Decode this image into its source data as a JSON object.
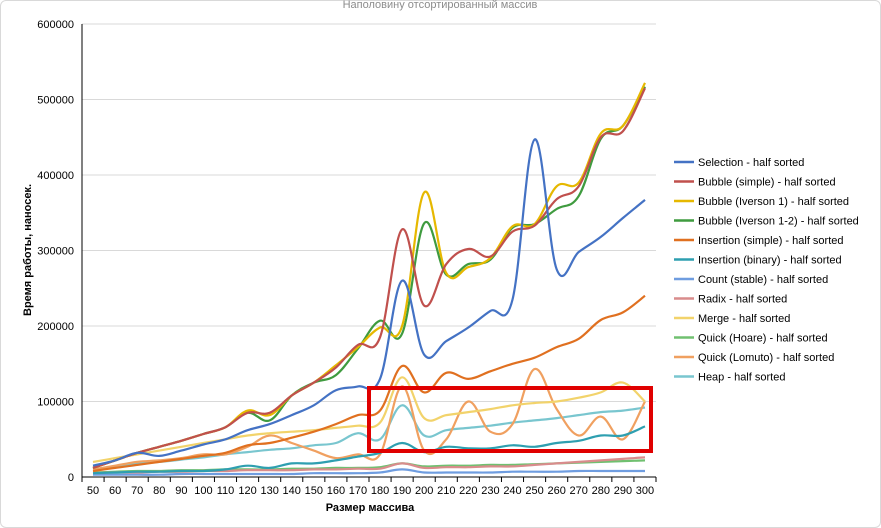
{
  "chart_data": {
    "type": "line",
    "title": "Наполовину отсортированный массив",
    "xlabel": "Размер массива",
    "ylabel": "Время работы, наносек.",
    "ylim": [
      0,
      600000
    ],
    "yticks": [
      0,
      100000,
      200000,
      300000,
      400000,
      500000,
      600000
    ],
    "grid": true,
    "legend": "right",
    "x": [
      50,
      60,
      70,
      80,
      90,
      100,
      110,
      120,
      130,
      140,
      150,
      160,
      170,
      180,
      190,
      200,
      210,
      220,
      230,
      240,
      250,
      260,
      270,
      280,
      290,
      300
    ],
    "series": [
      {
        "name": "Selection - half sorted",
        "color": "#4472c4",
        "values": [
          15000,
          22000,
          32000,
          28000,
          35000,
          43000,
          50000,
          62000,
          70000,
          82000,
          95000,
          115000,
          120000,
          130000,
          260000,
          162000,
          180000,
          198000,
          220000,
          235000,
          447000,
          275000,
          298000,
          318000,
          343000,
          367000
        ]
      },
      {
        "name": "Bubble (simple) - half sorted",
        "color": "#c0504d",
        "values": [
          12000,
          22000,
          32000,
          40000,
          48000,
          57000,
          66000,
          85000,
          85000,
          108000,
          125000,
          145000,
          175000,
          185000,
          328000,
          227000,
          282000,
          302000,
          292000,
          325000,
          333000,
          368000,
          385000,
          450000,
          458000,
          515000
        ]
      },
      {
        "name": "Bubble (Iverson 1) - half sorted",
        "color": "#e6b800",
        "values": [
          12000,
          22000,
          32000,
          40000,
          48000,
          57000,
          66000,
          88000,
          82000,
          108000,
          125000,
          148000,
          172000,
          198000,
          200000,
          377000,
          270000,
          278000,
          290000,
          332000,
          335000,
          385000,
          390000,
          455000,
          465000,
          522000
        ]
      },
      {
        "name": "Bubble (Iverson 1-2) - half sorted",
        "color": "#3f9b3f",
        "values": [
          12000,
          22000,
          32000,
          40000,
          48000,
          57000,
          66000,
          85000,
          75000,
          108000,
          125000,
          135000,
          170000,
          207000,
          190000,
          336000,
          268000,
          282000,
          288000,
          330000,
          335000,
          355000,
          372000,
          448000,
          465000,
          517000
        ]
      },
      {
        "name": "Insertion (simple) - half sorted",
        "color": "#e07020",
        "values": [
          8000,
          12000,
          16000,
          20000,
          24000,
          28000,
          32000,
          42000,
          45000,
          52000,
          60000,
          70000,
          82000,
          88000,
          147000,
          112000,
          138000,
          130000,
          140000,
          150000,
          158000,
          172000,
          183000,
          208000,
          218000,
          240000
        ]
      },
      {
        "name": "Insertion (binary) - half sorted",
        "color": "#2e9fb0",
        "values": [
          5000,
          6000,
          7000,
          7000,
          8000,
          8000,
          10000,
          15000,
          12000,
          18000,
          18000,
          22000,
          27000,
          32000,
          45000,
          33000,
          40000,
          38000,
          38000,
          42000,
          40000,
          45000,
          48000,
          55000,
          55000,
          67000
        ]
      },
      {
        "name": "Count (stable) - half sorted",
        "color": "#6f9de0",
        "values": [
          3000,
          3000,
          3000,
          3000,
          4000,
          4000,
          4000,
          4000,
          4000,
          4000,
          5000,
          5000,
          5000,
          6000,
          10000,
          6000,
          6000,
          6000,
          6000,
          7000,
          7000,
          7000,
          8000,
          8000,
          8000,
          8000
        ]
      },
      {
        "name": "Radix - half sorted",
        "color": "#d98c8c",
        "values": [
          5000,
          6000,
          6000,
          7000,
          7000,
          8000,
          8000,
          9000,
          9000,
          9000,
          10000,
          10000,
          11000,
          11000,
          18000,
          12000,
          13000,
          13000,
          14000,
          14000,
          16000,
          18000,
          20000,
          22000,
          24000,
          26000
        ]
      },
      {
        "name": "Merge - half sorted",
        "color": "#f2d36b",
        "values": [
          20000,
          25000,
          30000,
          35000,
          40000,
          45000,
          50000,
          55000,
          58000,
          60000,
          62000,
          65000,
          68000,
          72000,
          132000,
          78000,
          82000,
          86000,
          90000,
          95000,
          98000,
          100000,
          105000,
          112000,
          125000,
          100000
        ]
      },
      {
        "name": "Quick (Hoare) - half sorted",
        "color": "#70c070",
        "values": [
          6000,
          7000,
          8000,
          8000,
          9000,
          9000,
          10000,
          10000,
          10000,
          11000,
          11000,
          12000,
          12000,
          13000,
          18000,
          14000,
          15000,
          15000,
          16000,
          16000,
          17000,
          18000,
          19000,
          20000,
          21000,
          22000
        ]
      },
      {
        "name": "Quick (Lomuto) - half sorted",
        "color": "#f0a060",
        "values": [
          10000,
          15000,
          20000,
          22000,
          25000,
          30000,
          30000,
          40000,
          55000,
          45000,
          35000,
          25000,
          30000,
          30000,
          120000,
          35000,
          50000,
          100000,
          60000,
          70000,
          143000,
          90000,
          55000,
          80000,
          50000,
          100000
        ]
      },
      {
        "name": "Heap - half sorted",
        "color": "#79c6cf",
        "values": [
          10000,
          14000,
          18000,
          20000,
          23000,
          26000,
          30000,
          33000,
          36000,
          38000,
          42000,
          45000,
          58000,
          50000,
          95000,
          55000,
          62000,
          65000,
          68000,
          72000,
          75000,
          78000,
          82000,
          86000,
          88000,
          92000
        ]
      }
    ]
  }
}
